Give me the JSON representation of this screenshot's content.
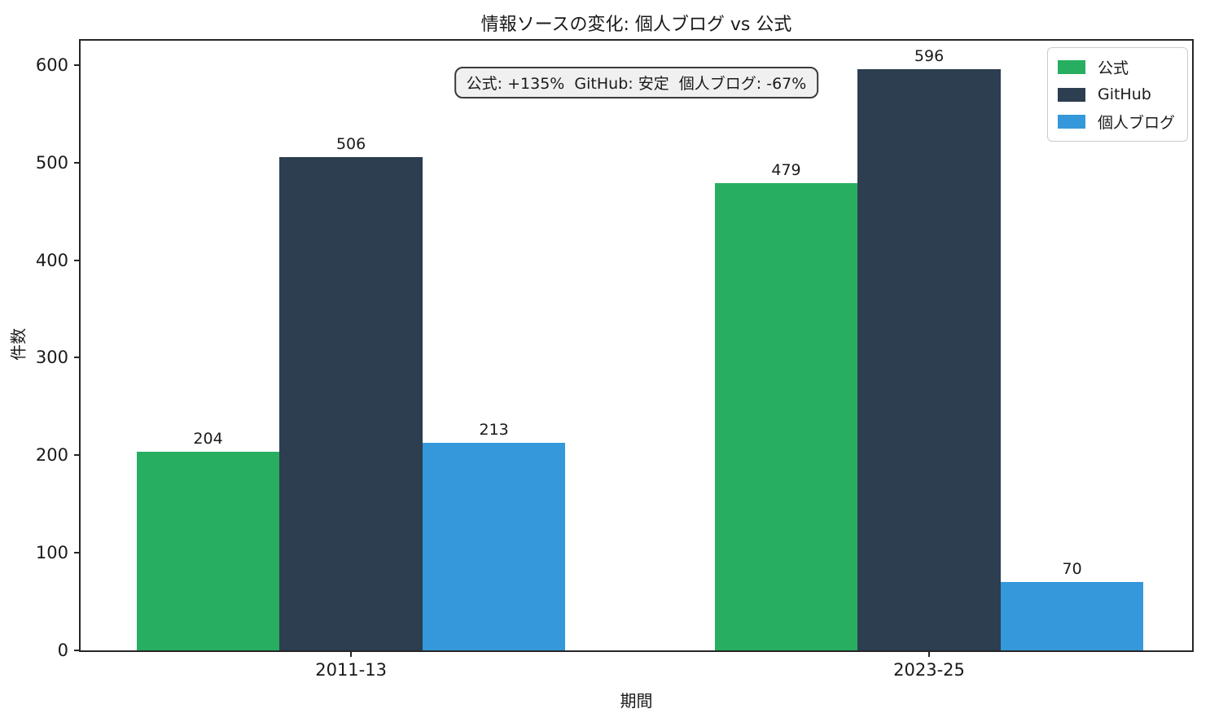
{
  "chart_data": {
    "type": "bar",
    "title": "情報ソースの変化: 個人ブログ vs 公式",
    "xlabel": "期間",
    "ylabel": "件数",
    "categories": [
      "2011-13",
      "2023-25"
    ],
    "series": [
      {
        "name": "公式",
        "color": "#27ae60",
        "values": [
          204,
          479
        ]
      },
      {
        "name": "GitHub",
        "color": "#2c3e50",
        "values": [
          506,
          596
        ]
      },
      {
        "name": "個人ブログ",
        "color": "#3498db",
        "values": [
          213,
          70
        ]
      }
    ],
    "ylim": [
      0,
      625
    ],
    "yticks": [
      0,
      100,
      200,
      300,
      400,
      500,
      600
    ],
    "grid": false,
    "legend_position": "upper right",
    "bar_value_labels": true,
    "annotation": "公式: +135%  GitHub: 安定  個人ブログ: -67%",
    "layout": {
      "group_centers_frac": [
        0.2433,
        0.7634
      ],
      "bar_width_frac": 0.1286
    }
  }
}
